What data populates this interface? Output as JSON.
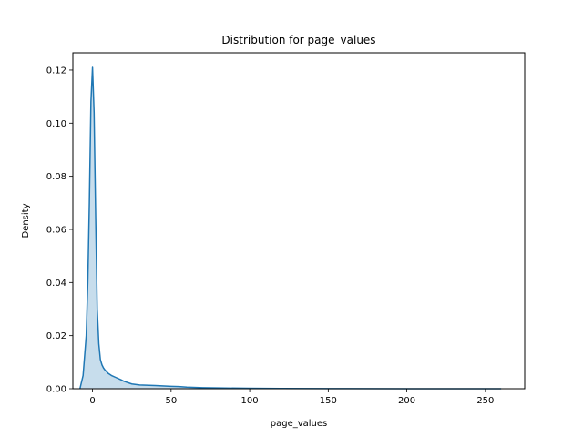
{
  "chart_data": {
    "type": "area",
    "title": "Distribution for page_values",
    "xlabel": "page_values",
    "ylabel": "Density",
    "xlim": [
      -12.5,
      275
    ],
    "ylim": [
      0,
      0.1265
    ],
    "xticks": [
      0,
      50,
      100,
      150,
      200,
      250
    ],
    "xtick_labels": [
      "0",
      "50",
      "100",
      "150",
      "200",
      "250"
    ],
    "yticks": [
      0,
      0.02,
      0.04,
      0.06,
      0.08,
      0.1,
      0.12
    ],
    "ytick_labels": [
      "0.00",
      "0.02",
      "0.04",
      "0.06",
      "0.08",
      "0.10",
      "0.12"
    ],
    "grid": false,
    "series": [
      {
        "line_color": "#1f77b4",
        "fill_color": "#1f77b4",
        "fill_opacity": 0.25,
        "x": [
          -8,
          -6,
          -4,
          -3,
          -2,
          -1,
          0,
          1,
          2,
          3,
          4,
          5,
          6,
          7,
          8,
          10,
          12,
          15,
          18,
          20,
          25,
          30,
          40,
          50,
          55,
          60,
          70,
          80,
          100,
          120,
          150,
          200,
          250,
          260
        ],
        "y": [
          0.0,
          0.005,
          0.02,
          0.04,
          0.07,
          0.108,
          0.121,
          0.104,
          0.065,
          0.03,
          0.017,
          0.011,
          0.009,
          0.0078,
          0.007,
          0.0058,
          0.005,
          0.0042,
          0.0034,
          0.0028,
          0.0018,
          0.0014,
          0.0012,
          0.0009,
          0.0008,
          0.0006,
          0.0004,
          0.0003,
          0.00015,
          0.0001,
          5e-05,
          2e-05,
          1e-05,
          0.0
        ]
      }
    ]
  }
}
